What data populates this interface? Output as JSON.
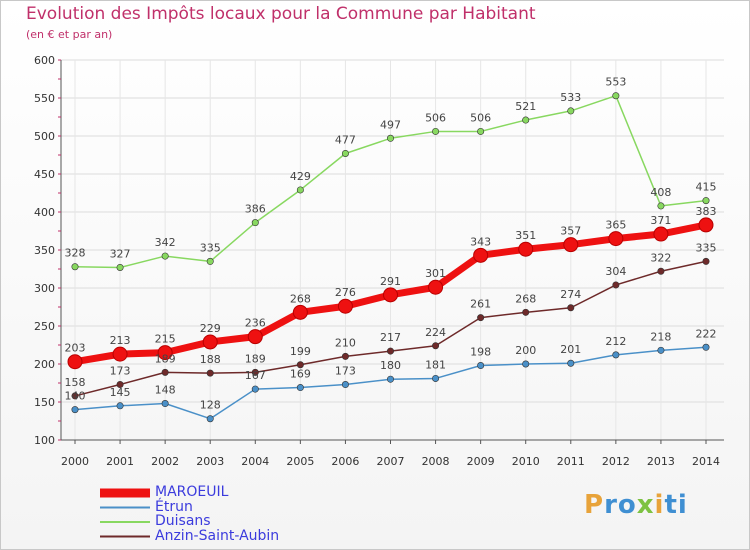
{
  "title": "Evolution des Impôts locaux pour la Commune par Habitant",
  "subtitle": "(en € et par an)",
  "logo_text": "Proxiti",
  "chart_data": {
    "type": "line",
    "title": "Evolution des Impôts locaux pour la Commune par Habitant",
    "subtitle": "(en € et par an)",
    "categories": [
      "2000",
      "2001",
      "2002",
      "2003",
      "2004",
      "2005",
      "2006",
      "2007",
      "2008",
      "2009",
      "2010",
      "2011",
      "2012",
      "2013",
      "2014"
    ],
    "ylim": [
      100,
      600
    ],
    "yticks": [
      100,
      150,
      200,
      250,
      300,
      350,
      400,
      450,
      500,
      550,
      600
    ],
    "grid": true,
    "legend_position": "bottom-left",
    "series": [
      {
        "name": "MAROEUIL",
        "color": "#ee1111",
        "values": [
          203,
          213,
          215,
          229,
          236,
          268,
          276,
          291,
          301,
          343,
          351,
          357,
          365,
          371,
          383
        ]
      },
      {
        "name": "Étrun",
        "color": "#4a90c8",
        "values": [
          140,
          145,
          148,
          128,
          167,
          169,
          173,
          180,
          181,
          198,
          200,
          201,
          212,
          218,
          222
        ]
      },
      {
        "name": "Duisans",
        "color": "#88d860",
        "values": [
          328,
          327,
          342,
          335,
          386,
          429,
          477,
          497,
          506,
          506,
          521,
          533,
          553,
          408,
          415
        ]
      },
      {
        "name": "Anzin-Saint-Aubin",
        "color": "#6e2a2a",
        "values": [
          158,
          173,
          189,
          188,
          189,
          199,
          210,
          217,
          224,
          261,
          268,
          274,
          304,
          322,
          335
        ]
      }
    ]
  }
}
